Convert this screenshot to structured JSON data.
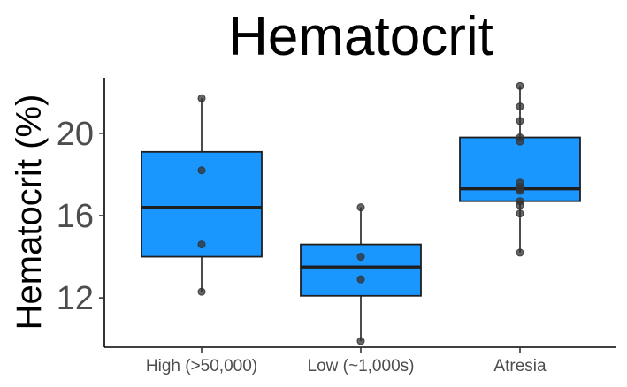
{
  "chart_data": {
    "type": "box",
    "title": "Hematocrit",
    "ylabel": "Hematocrit (%)",
    "xlabel": "",
    "ylim": [
      9.6,
      22.7
    ],
    "yticks": [
      12,
      16,
      20
    ],
    "categories": [
      "High (>50,000)",
      "Low (~1,000s)",
      "Atresia"
    ],
    "boxes": [
      {
        "category": "High (>50,000)",
        "whisker_low": 12.3,
        "q1": 14.0,
        "median": 16.4,
        "q3": 19.1,
        "whisker_high": 21.7,
        "points": [
          21.7,
          18.2,
          14.6,
          12.3
        ]
      },
      {
        "category": "Low (~1,000s)",
        "whisker_low": 9.9,
        "q1": 12.1,
        "median": 13.5,
        "q3": 14.6,
        "whisker_high": 16.4,
        "points": [
          16.4,
          14.0,
          12.9,
          9.9
        ]
      },
      {
        "category": "Atresia",
        "whisker_low": 14.2,
        "q1": 16.7,
        "median": 17.3,
        "q3": 19.8,
        "whisker_high": 22.3,
        "points": [
          22.3,
          21.3,
          20.6,
          19.8,
          19.6,
          17.6,
          17.4,
          17.3,
          17.2,
          16.7,
          16.5,
          16.1,
          14.2
        ]
      }
    ],
    "colors": {
      "box_fill": "#1a96ff",
      "box_stroke": "#1f1f1f",
      "point": "#333333",
      "axis": "#000000"
    },
    "grid": false
  }
}
